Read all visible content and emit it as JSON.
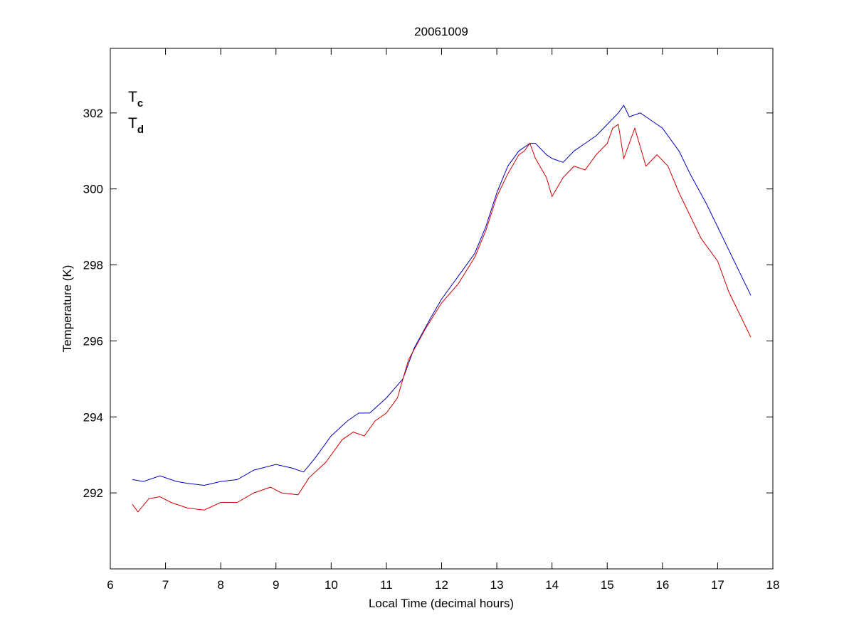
{
  "chart_data": {
    "type": "line",
    "title": "20061009",
    "xlabel": "Local Time (decimal hours)",
    "ylabel": "Temperature (K)",
    "xlim": [
      6,
      18
    ],
    "xticks": [
      6,
      7,
      8,
      9,
      10,
      11,
      12,
      13,
      14,
      15,
      16,
      17,
      18
    ],
    "ylim": [
      290,
      303.7
    ],
    "yticks": [
      292,
      294,
      296,
      298,
      300,
      302
    ],
    "grid": false,
    "legend": "upper left",
    "series": [
      {
        "name": "Tc",
        "color": "#0000c0",
        "x": [
          6.4,
          6.6,
          6.9,
          7.2,
          7.4,
          7.7,
          8.0,
          8.3,
          8.6,
          9.0,
          9.3,
          9.5,
          9.7,
          10.0,
          10.3,
          10.5,
          10.7,
          11.0,
          11.3,
          11.5,
          11.8,
          12.0,
          12.3,
          12.6,
          12.8,
          13.0,
          13.2,
          13.4,
          13.6,
          13.7,
          13.9,
          14.0,
          14.2,
          14.4,
          14.6,
          14.8,
          15.0,
          15.2,
          15.3,
          15.4,
          15.6,
          15.8,
          16.0,
          16.3,
          16.5,
          16.8,
          17.0,
          17.2,
          17.4,
          17.6
        ],
        "values": [
          292.35,
          292.3,
          292.45,
          292.3,
          292.25,
          292.2,
          292.3,
          292.35,
          292.6,
          292.75,
          292.65,
          292.55,
          292.9,
          293.5,
          293.9,
          294.1,
          294.1,
          294.5,
          295.0,
          295.8,
          296.6,
          297.1,
          297.7,
          298.3,
          299.0,
          299.9,
          300.6,
          301.0,
          301.2,
          301.2,
          300.9,
          300.8,
          300.7,
          301.0,
          301.2,
          301.4,
          301.7,
          302.0,
          302.2,
          301.9,
          302.0,
          301.8,
          301.6,
          301.0,
          300.4,
          299.6,
          299.0,
          298.4,
          297.8,
          297.2
        ]
      },
      {
        "name": "Td",
        "color": "#d00000",
        "x": [
          6.4,
          6.5,
          6.7,
          6.9,
          7.1,
          7.4,
          7.7,
          8.0,
          8.3,
          8.6,
          8.9,
          9.1,
          9.4,
          9.6,
          9.9,
          10.2,
          10.4,
          10.6,
          10.8,
          11.0,
          11.2,
          11.4,
          11.7,
          12.0,
          12.3,
          12.6,
          12.8,
          13.0,
          13.2,
          13.4,
          13.5,
          13.6,
          13.7,
          13.9,
          14.0,
          14.2,
          14.4,
          14.6,
          14.8,
          15.0,
          15.1,
          15.2,
          15.3,
          15.5,
          15.7,
          15.9,
          16.1,
          16.3,
          16.5,
          16.7,
          17.0,
          17.2,
          17.4,
          17.6
        ],
        "values": [
          291.7,
          291.5,
          291.85,
          291.9,
          291.75,
          291.6,
          291.55,
          291.75,
          291.75,
          292.0,
          292.15,
          292.0,
          291.95,
          292.4,
          292.8,
          293.4,
          293.6,
          293.5,
          293.9,
          294.1,
          294.5,
          295.5,
          296.3,
          297.0,
          297.5,
          298.2,
          298.9,
          299.8,
          300.4,
          300.9,
          301.0,
          301.2,
          300.8,
          300.3,
          299.8,
          300.3,
          300.6,
          300.5,
          300.9,
          301.2,
          301.6,
          301.7,
          300.8,
          301.6,
          300.6,
          300.9,
          300.6,
          299.9,
          299.3,
          298.7,
          298.1,
          297.3,
          296.7,
          296.1
        ]
      }
    ]
  }
}
